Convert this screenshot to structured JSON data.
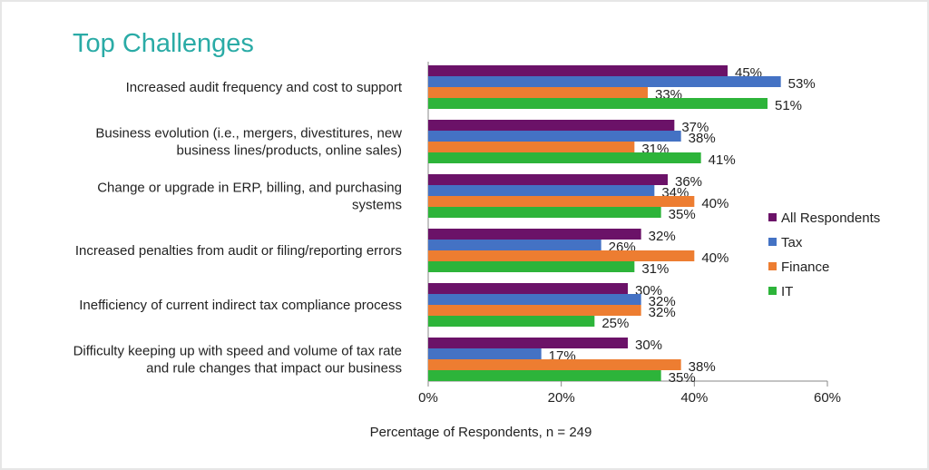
{
  "chart_data": {
    "type": "bar",
    "orientation": "horizontal",
    "title": "Top Challenges",
    "xlabel": "Percentage of Respondents,  n = 249",
    "ylabel": "",
    "xlim": [
      0,
      60
    ],
    "x_ticks": [
      "0%",
      "20%",
      "40%",
      "60%"
    ],
    "grid": false,
    "legend_position": "right",
    "categories": [
      [
        "Increased audit frequency and cost to support"
      ],
      [
        "Business evolution (i.e., mergers, divestitures, new",
        "business lines/products, online sales)"
      ],
      [
        "Change or upgrade in ERP, billing, and purchasing",
        "systems"
      ],
      [
        "Increased penalties from audit or filing/reporting errors"
      ],
      [
        "Inefficiency of current indirect tax compliance process"
      ],
      [
        "Difficulty keeping up with speed and volume of tax rate",
        "and rule changes that impact our business"
      ]
    ],
    "series": [
      {
        "name": "All Respondents",
        "color": "#6b1268",
        "values": [
          45,
          37,
          36,
          32,
          30,
          30
        ]
      },
      {
        "name": "Tax",
        "color": "#4472c4",
        "values": [
          53,
          38,
          34,
          26,
          32,
          17
        ]
      },
      {
        "name": "Finance",
        "color": "#ed7d31",
        "values": [
          33,
          31,
          40,
          40,
          32,
          38
        ]
      },
      {
        "name": "IT",
        "color": "#2db43a",
        "values": [
          51,
          41,
          35,
          31,
          25,
          35
        ]
      }
    ]
  }
}
